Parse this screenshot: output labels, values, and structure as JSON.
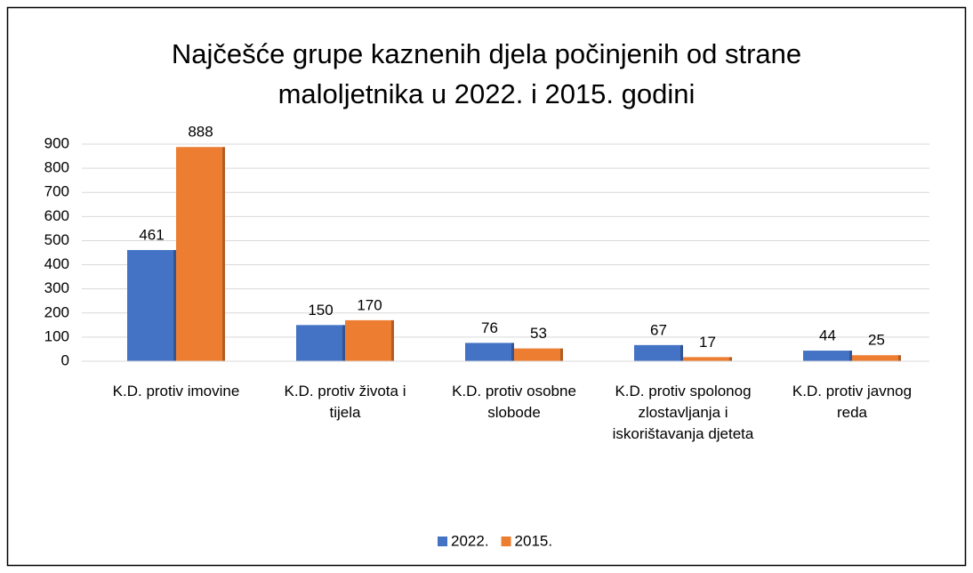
{
  "chart_data": {
    "type": "bar",
    "title": "Najčešće grupe kaznenih djela počinjenih od strane maloljetnika u 2022. i 2015. godini",
    "categories": [
      "K.D. protiv imovine",
      "K.D. protiv života i tijela",
      "K.D. protiv osobne slobode",
      "K.D. protiv spolonog zlostavljanja i iskorištavanja djeteta",
      "K.D. protiv javnog reda"
    ],
    "series": [
      {
        "name": "2022.",
        "color": "#4472c4",
        "values": [
          461,
          150,
          76,
          67,
          44
        ]
      },
      {
        "name": "2015.",
        "color": "#ed7d31",
        "values": [
          888,
          170,
          53,
          17,
          25
        ]
      }
    ],
    "ylim": [
      0,
      900
    ],
    "yticks": [
      0,
      100,
      200,
      300,
      400,
      500,
      600,
      700,
      800,
      900
    ],
    "grid": true,
    "legend": "bottom"
  }
}
